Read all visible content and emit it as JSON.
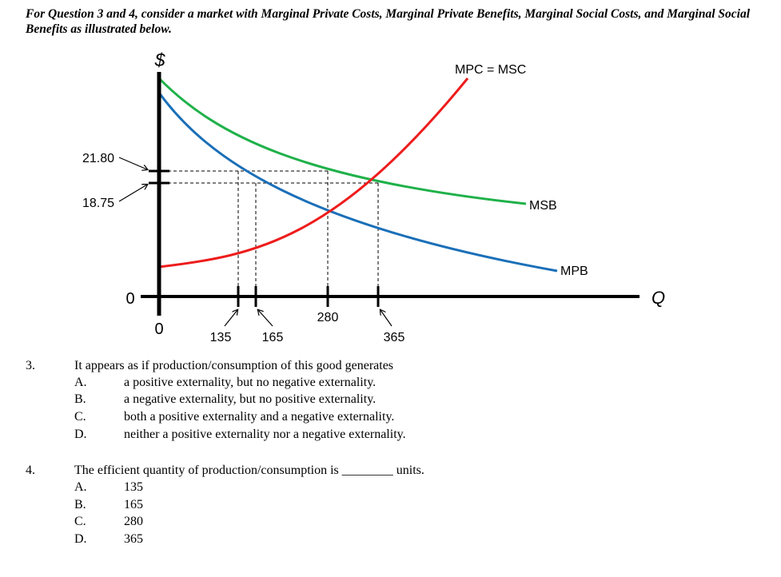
{
  "intro": "For Question 3 and 4, consider a market with Marginal Private Costs, Marginal Private Benefits, Marginal Social Costs, and Marginal Social Benefits as illustrated below.",
  "graph": {
    "y_axis_symbol": "$",
    "x_axis_symbol": "Q",
    "origin_y_label": "0",
    "origin_x_label": "0",
    "price_labels": [
      "21.80",
      "18.75"
    ],
    "quantity_labels": [
      "135",
      "165",
      "280",
      "365"
    ],
    "curves": {
      "supply": {
        "label": "MPC = MSC",
        "color": "#ee1c1c"
      },
      "msb": {
        "label": "MSB",
        "color": "#1fb14a"
      },
      "mpb": {
        "label": "MPB",
        "color": "#1a6fb8"
      }
    }
  },
  "questions": [
    {
      "number": "3.",
      "stem": "It appears as if production/consumption of this good generates",
      "options": [
        {
          "letter": "A.",
          "text": "a positive externality, but no negative externality."
        },
        {
          "letter": "B.",
          "text": "a negative externality, but no positive externality."
        },
        {
          "letter": "C.",
          "text": "both a positive externality and a negative externality."
        },
        {
          "letter": "D.",
          "text": "neither a positive externality nor a negative externality."
        }
      ]
    },
    {
      "number": "4.",
      "stem_before": "The efficient quantity of production/consumption is ",
      "blank": "________",
      "stem_after": " units.",
      "options": [
        {
          "letter": "A.",
          "text": "135"
        },
        {
          "letter": "B.",
          "text": "165"
        },
        {
          "letter": "C.",
          "text": "280"
        },
        {
          "letter": "D.",
          "text": "365"
        }
      ]
    }
  ]
}
